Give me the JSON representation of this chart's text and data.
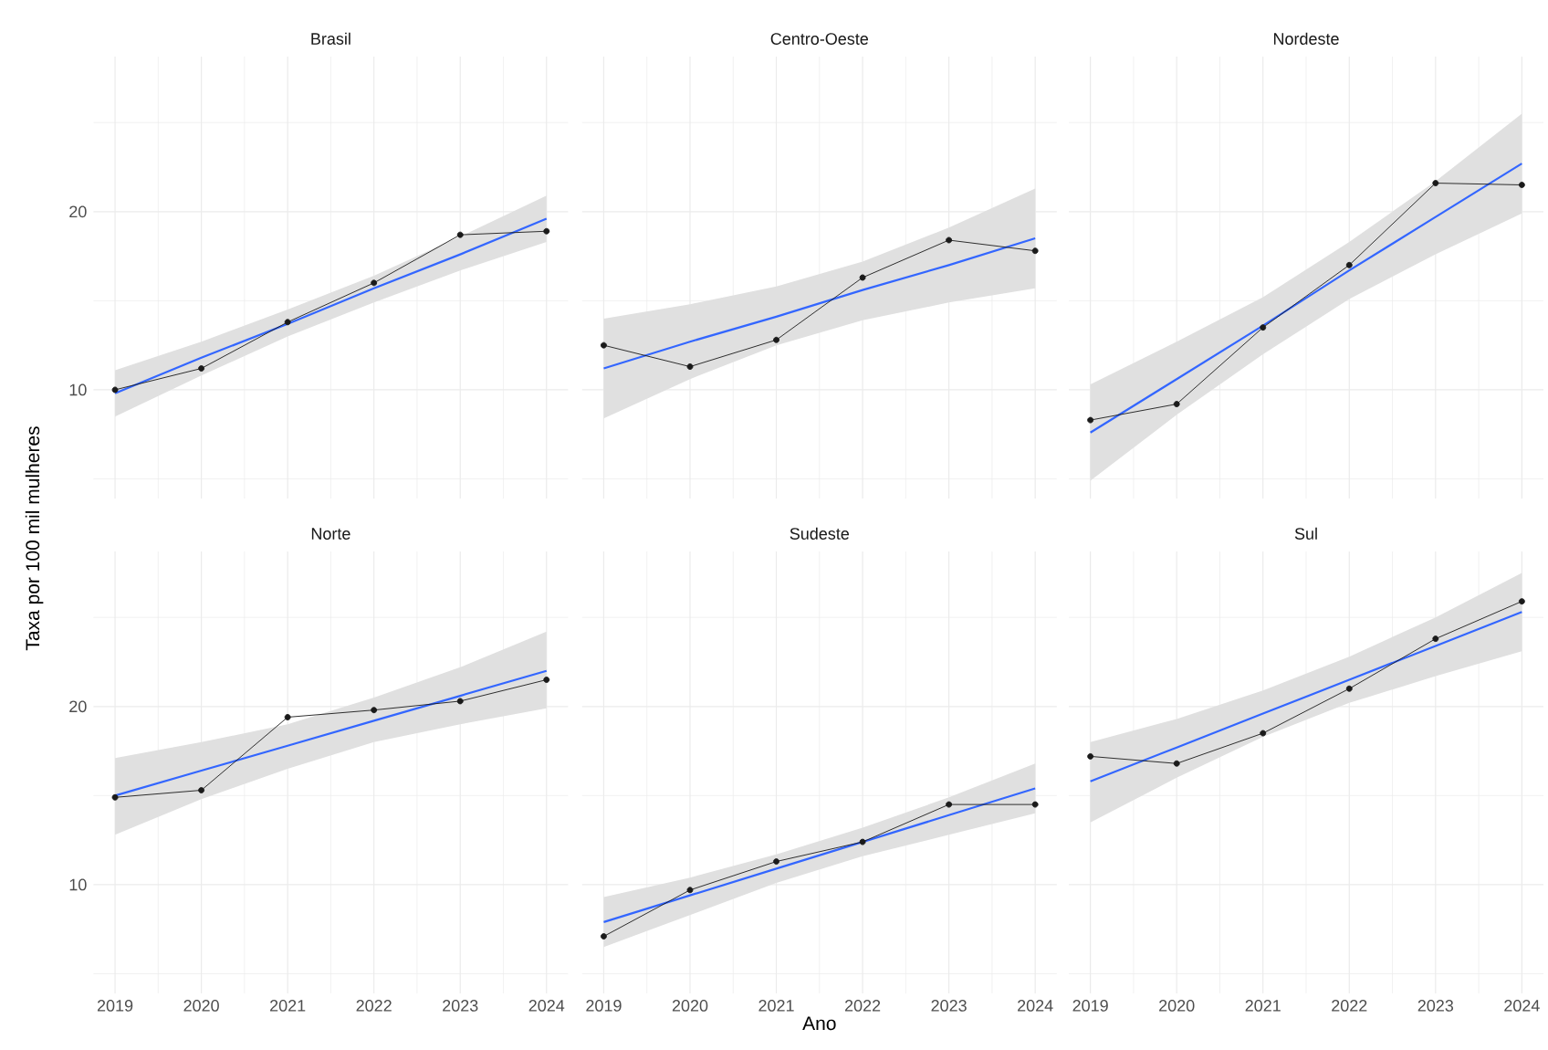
{
  "chart_data": [
    {
      "type": "line",
      "title": "Brasil",
      "x": [
        2019,
        2020,
        2021,
        2022,
        2023,
        2024
      ],
      "xlim": [
        2018.75,
        2024.25
      ],
      "ylim": [
        3.9,
        28.7
      ],
      "xticks": [
        2019,
        {
          "value": 2019.5,
          "label": null
        },
        2020,
        {
          "value": 2020.5,
          "label": null
        },
        2021,
        {
          "value": 2021.5,
          "label": null
        },
        2022,
        {
          "value": 2022.5,
          "label": null
        },
        2023,
        {
          "value": 2023.5,
          "label": null
        },
        2024
      ],
      "yticks": [
        {
          "value": 5,
          "label": null
        },
        10,
        {
          "value": 15,
          "label": null
        },
        20,
        {
          "value": 25,
          "label": null
        }
      ],
      "grid": true,
      "marker": "circle",
      "tick_labels": "y",
      "series": [
        {
          "color": "#1a1a1a",
          "values": [
            10.0,
            11.2,
            13.8,
            16.0,
            18.7,
            18.9
          ]
        },
        {
          "type": "line",
          "color": "#3366ff",
          "marker": "none",
          "values": [
            9.8,
            11.8,
            13.7,
            15.7,
            17.6,
            19.6
          ],
          "lower": [
            8.5,
            10.8,
            13.0,
            14.9,
            16.7,
            18.3
          ],
          "upper": [
            11.1,
            12.7,
            14.5,
            16.4,
            18.6,
            20.9
          ]
        }
      ]
    },
    {
      "type": "line",
      "title": "Centro-Oeste",
      "x": [
        2019,
        2020,
        2021,
        2022,
        2023,
        2024
      ],
      "xlim": [
        2018.75,
        2024.25
      ],
      "ylim": [
        3.9,
        28.7
      ],
      "xticks": [
        2019,
        {
          "value": 2019.5,
          "label": null
        },
        2020,
        {
          "value": 2020.5,
          "label": null
        },
        2021,
        {
          "value": 2021.5,
          "label": null
        },
        2022,
        {
          "value": 2022.5,
          "label": null
        },
        2023,
        {
          "value": 2023.5,
          "label": null
        },
        2024
      ],
      "yticks": [
        {
          "value": 5,
          "label": null
        },
        10,
        {
          "value": 15,
          "label": null
        },
        20,
        {
          "value": 25,
          "label": null
        }
      ],
      "grid": true,
      "marker": "circle",
      "tick_labels": false,
      "series": [
        {
          "color": "#1a1a1a",
          "values": [
            12.5,
            11.3,
            12.8,
            16.3,
            18.4,
            17.8
          ]
        },
        {
          "type": "line",
          "color": "#3366ff",
          "marker": "none",
          "values": [
            11.2,
            12.7,
            14.1,
            15.6,
            17.0,
            18.5
          ],
          "lower": [
            8.4,
            10.6,
            12.5,
            13.9,
            14.9,
            15.7
          ],
          "upper": [
            14.0,
            14.8,
            15.8,
            17.2,
            19.1,
            21.3
          ]
        }
      ]
    },
    {
      "type": "line",
      "title": "Nordeste",
      "x": [
        2019,
        2020,
        2021,
        2022,
        2023,
        2024
      ],
      "xlim": [
        2018.75,
        2024.25
      ],
      "ylim": [
        3.9,
        28.7
      ],
      "xticks": [
        2019,
        {
          "value": 2019.5,
          "label": null
        },
        2020,
        {
          "value": 2020.5,
          "label": null
        },
        2021,
        {
          "value": 2021.5,
          "label": null
        },
        2022,
        {
          "value": 2022.5,
          "label": null
        },
        2023,
        {
          "value": 2023.5,
          "label": null
        },
        2024
      ],
      "yticks": [
        {
          "value": 5,
          "label": null
        },
        10,
        {
          "value": 15,
          "label": null
        },
        20,
        {
          "value": 25,
          "label": null
        }
      ],
      "grid": true,
      "marker": "circle",
      "tick_labels": false,
      "series": [
        {
          "color": "#1a1a1a",
          "values": [
            8.3,
            9.2,
            13.5,
            17.0,
            21.6,
            21.5
          ]
        },
        {
          "type": "line",
          "color": "#3366ff",
          "marker": "none",
          "values": [
            7.6,
            10.6,
            13.6,
            16.7,
            19.7,
            22.7
          ],
          "lower": [
            4.9,
            8.6,
            12.0,
            15.1,
            17.6,
            19.9
          ],
          "upper": [
            10.3,
            12.7,
            15.2,
            18.3,
            21.7,
            25.5
          ]
        }
      ]
    },
    {
      "type": "line",
      "title": "Norte",
      "ylabel": "Taxa por 100 mil mulheres",
      "x": [
        2019,
        2020,
        2021,
        2022,
        2023,
        2024
      ],
      "xlim": [
        2018.75,
        2024.25
      ],
      "ylim": [
        3.9,
        28.7
      ],
      "xticks": [
        2019,
        {
          "value": 2019.5,
          "label": null
        },
        2020,
        {
          "value": 2020.5,
          "label": null
        },
        2021,
        {
          "value": 2021.5,
          "label": null
        },
        2022,
        {
          "value": 2022.5,
          "label": null
        },
        2023,
        {
          "value": 2023.5,
          "label": null
        },
        2024
      ],
      "yticks": [
        {
          "value": 5,
          "label": null
        },
        10,
        {
          "value": 15,
          "label": null
        },
        20,
        {
          "value": 25,
          "label": null
        }
      ],
      "grid": true,
      "marker": "circle",
      "series": [
        {
          "color": "#1a1a1a",
          "values": [
            14.9,
            15.3,
            19.4,
            19.8,
            20.3,
            21.5
          ]
        },
        {
          "type": "line",
          "color": "#3366ff",
          "marker": "none",
          "values": [
            15.0,
            16.4,
            17.8,
            19.2,
            20.6,
            22.0
          ],
          "lower": [
            12.8,
            14.8,
            16.5,
            18.0,
            19.0,
            19.9
          ],
          "upper": [
            17.1,
            18.0,
            19.0,
            20.5,
            22.2,
            24.2
          ]
        }
      ]
    },
    {
      "type": "line",
      "title": "Sudeste",
      "xlabel": "Ano",
      "x": [
        2019,
        2020,
        2021,
        2022,
        2023,
        2024
      ],
      "xlim": [
        2018.75,
        2024.25
      ],
      "ylim": [
        3.9,
        28.7
      ],
      "xticks": [
        2019,
        {
          "value": 2019.5,
          "label": null
        },
        2020,
        {
          "value": 2020.5,
          "label": null
        },
        2021,
        {
          "value": 2021.5,
          "label": null
        },
        2022,
        {
          "value": 2022.5,
          "label": null
        },
        2023,
        {
          "value": 2023.5,
          "label": null
        },
        2024
      ],
      "yticks": [
        {
          "value": 5,
          "label": null
        },
        10,
        {
          "value": 15,
          "label": null
        },
        20,
        {
          "value": 25,
          "label": null
        }
      ],
      "grid": true,
      "marker": "circle",
      "tick_labels": "x",
      "series": [
        {
          "color": "#1a1a1a",
          "values": [
            7.1,
            9.7,
            11.3,
            12.4,
            14.5,
            14.5
          ]
        },
        {
          "type": "line",
          "color": "#3366ff",
          "marker": "none",
          "values": [
            7.9,
            9.4,
            10.9,
            12.4,
            13.9,
            15.4
          ],
          "lower": [
            6.5,
            8.3,
            10.1,
            11.6,
            12.8,
            14.0
          ],
          "upper": [
            9.3,
            10.4,
            11.7,
            13.2,
            14.9,
            16.8
          ]
        }
      ]
    },
    {
      "type": "line",
      "title": "Sul",
      "x": [
        2019,
        2020,
        2021,
        2022,
        2023,
        2024
      ],
      "xlim": [
        2018.75,
        2024.25
      ],
      "ylim": [
        3.9,
        28.7
      ],
      "xticks": [
        2019,
        {
          "value": 2019.5,
          "label": null
        },
        2020,
        {
          "value": 2020.5,
          "label": null
        },
        2021,
        {
          "value": 2021.5,
          "label": null
        },
        2022,
        {
          "value": 2022.5,
          "label": null
        },
        2023,
        {
          "value": 2023.5,
          "label": null
        },
        2024
      ],
      "yticks": [
        {
          "value": 5,
          "label": null
        },
        10,
        {
          "value": 15,
          "label": null
        },
        20,
        {
          "value": 25,
          "label": null
        }
      ],
      "grid": true,
      "marker": "circle",
      "tick_labels": "x",
      "series": [
        {
          "color": "#1a1a1a",
          "values": [
            17.2,
            16.8,
            18.5,
            21.0,
            23.8,
            25.9
          ]
        },
        {
          "type": "line",
          "color": "#3366ff",
          "marker": "none",
          "values": [
            15.8,
            17.7,
            19.6,
            21.5,
            23.4,
            25.3
          ],
          "lower": [
            13.5,
            16.0,
            18.3,
            20.2,
            21.7,
            23.1
          ],
          "upper": [
            18.0,
            19.3,
            20.9,
            22.8,
            25.0,
            27.5
          ]
        }
      ]
    }
  ]
}
